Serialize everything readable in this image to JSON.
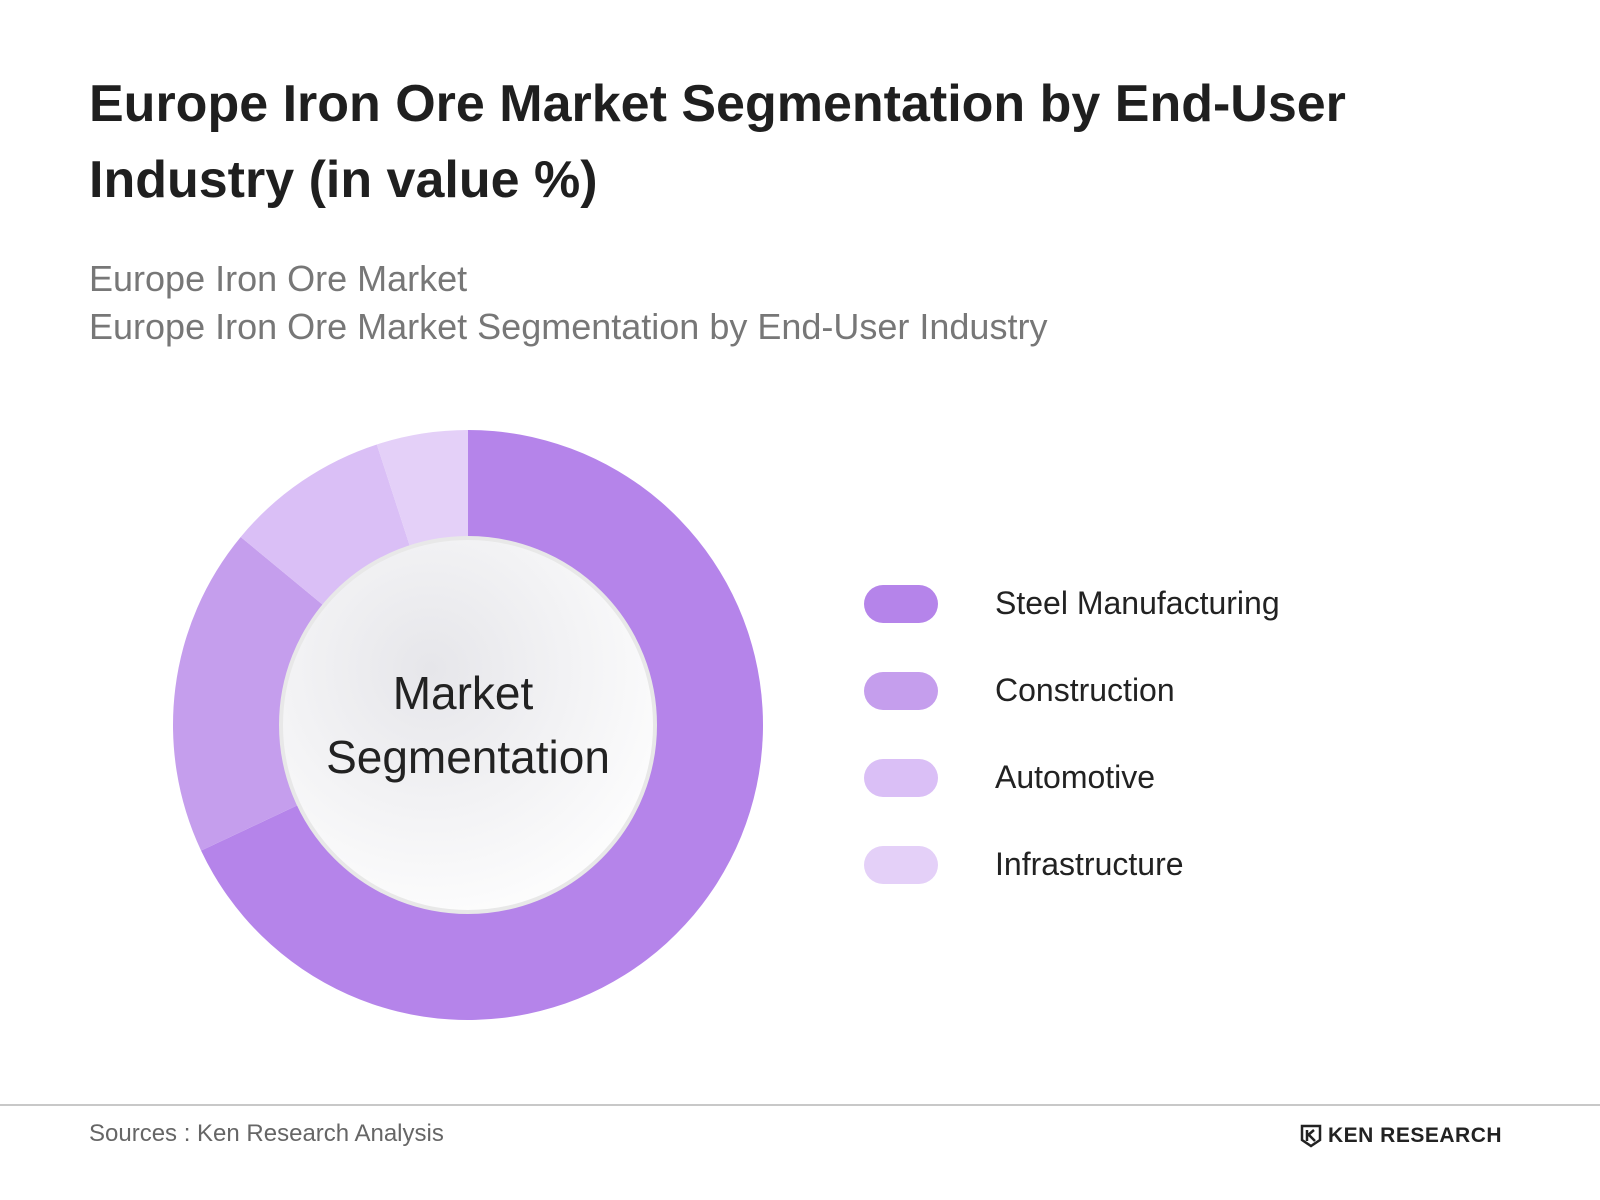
{
  "title": "Europe Iron Ore Market Segmentation by End-User Industry (in value %)",
  "subtitle_1": "Europe Iron Ore Market",
  "subtitle_2": "Europe Iron Ore Market  Segmentation by End-User Industry",
  "chart_data": {
    "type": "pie",
    "variant": "donut",
    "title": "Europe Iron Ore Market Segmentation by End-User Industry (in value %)",
    "center_label": [
      "Market",
      "Segmentation"
    ],
    "categories": [
      "Steel Manufacturing",
      "Construction",
      "Automotive",
      "Infrastructure"
    ],
    "values": [
      68,
      18,
      9,
      5
    ],
    "colors": [
      "#b584ea",
      "#c59eed",
      "#dabff6",
      "#e4d0f8"
    ],
    "legend_position": "right"
  },
  "footer": {
    "source": "Sources : Ken Research Analysis",
    "logo_text": "KEN RESEARCH"
  }
}
